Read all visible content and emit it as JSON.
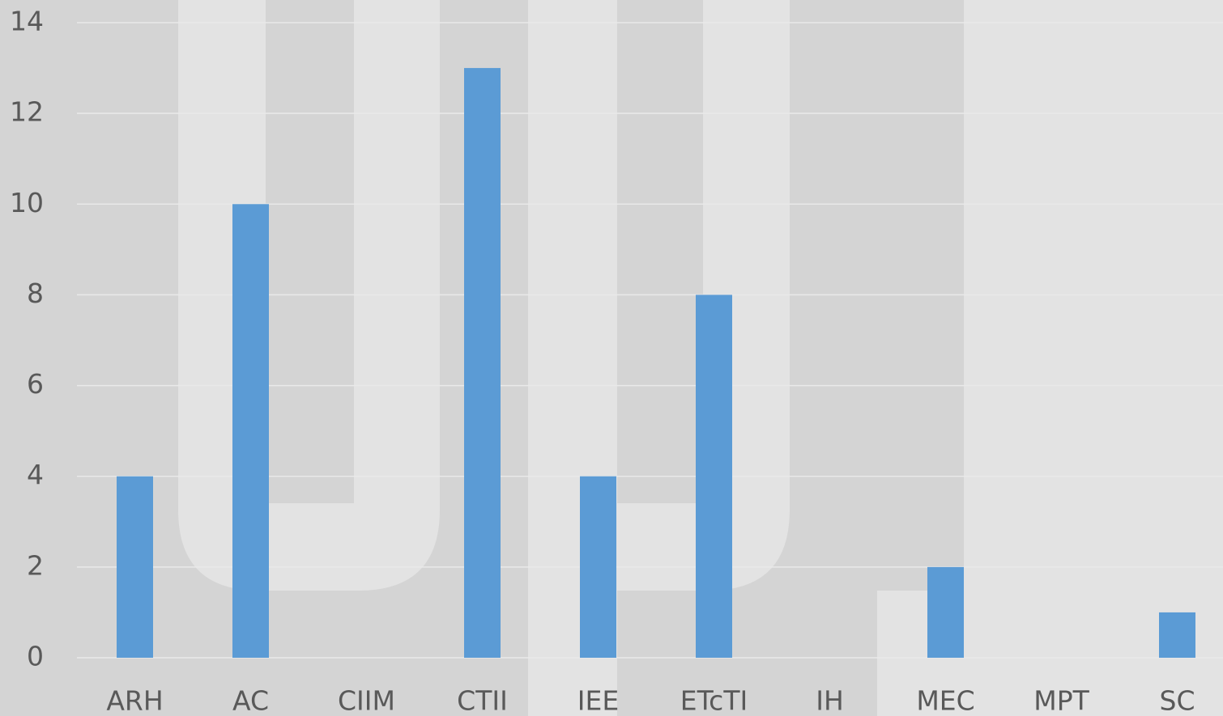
{
  "chart_data": {
    "type": "bar",
    "categories": [
      "ARH",
      "AC",
      "CIIM",
      "CTII",
      "IEE",
      "ETcTI",
      "IH",
      "MEC",
      "MPT",
      "SC"
    ],
    "values": [
      4,
      10,
      0,
      13,
      4,
      8,
      0,
      2,
      0,
      1
    ],
    "color": "#5b9bd5",
    "ylim": [
      0,
      14
    ],
    "yticks": [
      0,
      2,
      4,
      6,
      8,
      10,
      12,
      14
    ],
    "grid": true
  }
}
